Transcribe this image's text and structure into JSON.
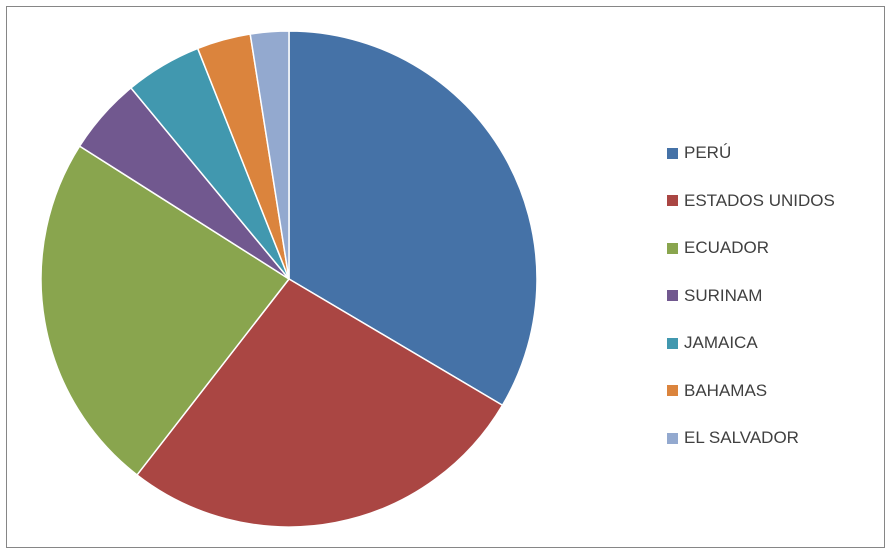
{
  "chart_data": {
    "type": "pie",
    "title": "",
    "categories": [
      "PERÚ",
      "ESTADOS UNIDOS",
      "ECUADOR",
      "SURINAM",
      "JAMAICA",
      "BAHAMAS",
      "EL SALVADOR"
    ],
    "values": [
      33.5,
      27.0,
      23.5,
      5.0,
      5.0,
      3.5,
      2.5
    ],
    "colors": [
      "#4572A7",
      "#AA4643",
      "#89A54E",
      "#71588F",
      "#4198AF",
      "#DB843D",
      "#93A9CF"
    ],
    "start_angle": "12 o'clock",
    "direction": "clockwise",
    "legend_position": "right"
  }
}
